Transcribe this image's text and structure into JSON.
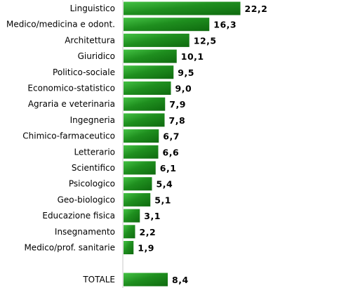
{
  "chart_data": {
    "type": "bar",
    "orientation": "horizontal",
    "categories": [
      "Linguistico",
      "Medico/medicina e odont.",
      "Architettura",
      "Giuridico",
      "Politico-sociale",
      "Economico-statistico",
      "Agraria e veterinaria",
      "Ingegneria",
      "Chimico-farmaceutico",
      "Letterario",
      "Scientifico",
      "Psicologico",
      "Geo-biologico",
      "Educazione fisica",
      "Insegnamento",
      "Medico/prof. sanitarie"
    ],
    "values": [
      22.2,
      16.3,
      12.5,
      10.1,
      9.5,
      9.0,
      7.9,
      7.8,
      6.7,
      6.6,
      6.1,
      5.4,
      5.1,
      3.1,
      2.2,
      1.9
    ],
    "value_labels": [
      "22,2",
      "16,3",
      "12,5",
      "10,1",
      "9,5",
      "9,0",
      "7,9",
      "7,8",
      "6,7",
      "6,6",
      "6,1",
      "5,4",
      "5,1",
      "3,1",
      "2,2",
      "1,9"
    ],
    "total": {
      "label": "TOTALE",
      "value": 8.4,
      "value_label": "8,4"
    },
    "bar_color": "#1e8a1e",
    "bar_highlight": "#3db83d",
    "axis_color": "#c8c8c8",
    "grid": false,
    "legend": "none"
  }
}
